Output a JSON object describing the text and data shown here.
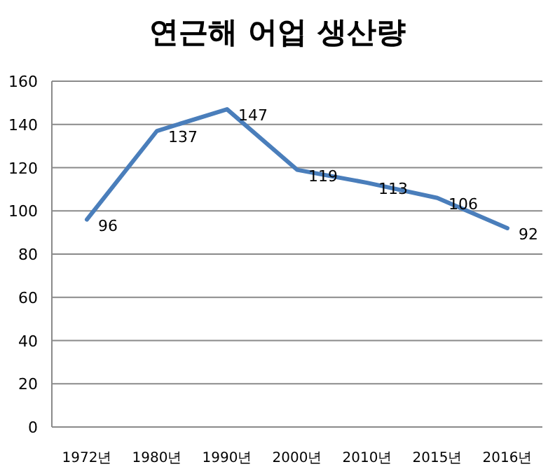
{
  "chart_data": {
    "type": "line",
    "title": "연근해 어업 생산량",
    "categories": [
      "1972년",
      "1980년",
      "1990년",
      "2000년",
      "2010년",
      "2015년",
      "2016년"
    ],
    "series": [
      {
        "color": "#4a7ebb",
        "values": [
          96,
          137,
          147,
          119,
          113,
          106,
          92
        ]
      }
    ],
    "ylim": [
      0,
      160
    ],
    "yticks": [
      0,
      20,
      40,
      60,
      80,
      100,
      120,
      140,
      160
    ],
    "grid": "y",
    "data_labels": true,
    "marker": "none",
    "line_style": "solid"
  }
}
